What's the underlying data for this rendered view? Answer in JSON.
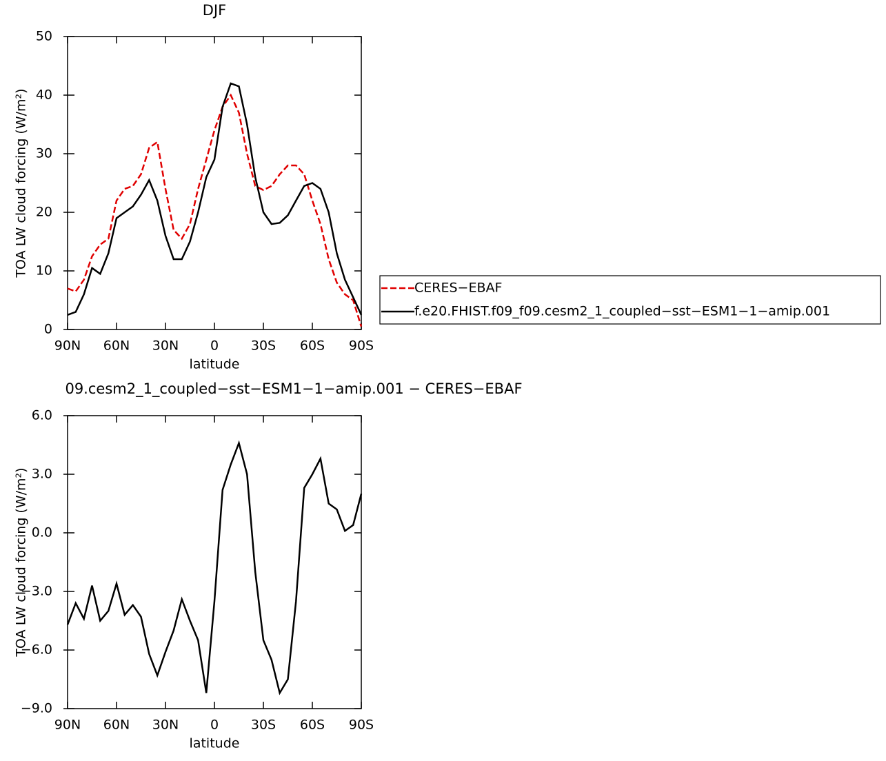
{
  "chart_data": [
    {
      "type": "line",
      "title": "DJF",
      "xlabel": "latitude",
      "ylabel": "TOA LW cloud forcing (W/m²)",
      "x": [
        90,
        85,
        80,
        75,
        70,
        65,
        60,
        55,
        50,
        45,
        40,
        35,
        30,
        25,
        20,
        15,
        10,
        5,
        0,
        -5,
        -10,
        -15,
        -20,
        -25,
        -30,
        -35,
        -40,
        -45,
        -50,
        -55,
        -60,
        -65,
        -70,
        -75,
        -80,
        -85,
        -90
      ],
      "xlim": [
        90,
        -90
      ],
      "xticks": [
        {
          "value": 90,
          "label": "90N"
        },
        {
          "value": 60,
          "label": "60N"
        },
        {
          "value": 30,
          "label": "30N"
        },
        0,
        {
          "value": -30,
          "label": "30S"
        },
        {
          "value": -60,
          "label": "60S"
        },
        {
          "value": -90,
          "label": "90S"
        }
      ],
      "ylim": [
        0,
        50
      ],
      "yticks": [
        0,
        10,
        20,
        30,
        40,
        50
      ],
      "legend": "right",
      "series": [
        {
          "name": "CERES−EBAF",
          "color": "#e00000",
          "line_style": "dashed",
          "values": [
            7,
            6.5,
            8.5,
            12.5,
            14.5,
            15.5,
            22,
            24,
            24.5,
            26.5,
            31,
            32,
            24,
            17,
            15.5,
            18,
            24,
            29,
            34,
            38,
            40,
            37,
            30,
            24.5,
            23.8,
            24.5,
            26.5,
            28,
            28,
            26.5,
            22,
            18,
            12,
            8,
            6,
            5,
            0.5
          ]
        },
        {
          "name": "f.e20.FHIST.f09_f09.cesm2_1_coupled−sst−ESM1−1−amip.001",
          "color": "#000000",
          "line_style": "solid",
          "values": [
            2.5,
            3,
            6,
            10.5,
            9.5,
            13,
            19,
            20,
            21,
            23,
            25.5,
            22,
            16,
            12,
            12,
            15,
            20,
            26,
            29,
            38,
            42,
            41.5,
            35,
            26,
            20,
            18,
            18.2,
            19.5,
            22,
            24.5,
            25,
            24,
            20,
            13,
            8.5,
            5.5,
            2.5
          ]
        }
      ]
    },
    {
      "type": "line",
      "title": "09.cesm2_1_coupled−sst−ESM1−1−amip.001 − CERES−EBAF",
      "xlabel": "latitude",
      "ylabel": "TOA LW cloud forcing (W/m²)",
      "x": [
        90,
        85,
        80,
        75,
        70,
        65,
        60,
        55,
        50,
        45,
        40,
        35,
        30,
        25,
        20,
        15,
        10,
        5,
        0,
        -5,
        -10,
        -15,
        -20,
        -25,
        -30,
        -35,
        -40,
        -45,
        -50,
        -55,
        -60,
        -65,
        -70,
        -75,
        -80,
        -85,
        -90
      ],
      "xlim": [
        90,
        -90
      ],
      "xticks": [
        {
          "value": 90,
          "label": "90N"
        },
        {
          "value": 60,
          "label": "60N"
        },
        {
          "value": 30,
          "label": "30N"
        },
        0,
        {
          "value": -30,
          "label": "30S"
        },
        {
          "value": -60,
          "label": "60S"
        },
        {
          "value": -90,
          "label": "90S"
        }
      ],
      "ylim": [
        -9,
        6
      ],
      "yticks": [
        {
          "value": 6,
          "label": "6.0"
        },
        {
          "value": 3,
          "label": "3.0"
        },
        {
          "value": 0,
          "label": "0.0"
        },
        {
          "value": -3,
          "label": "−3.0"
        },
        {
          "value": -6,
          "label": "−6.0"
        },
        {
          "value": -9,
          "label": "−9.0"
        }
      ],
      "series": [
        {
          "color": "#000000",
          "line_style": "solid",
          "values": [
            -4.7,
            -3.6,
            -4.4,
            -2.7,
            -4.5,
            -4.0,
            -2.6,
            -4.2,
            -3.7,
            -4.3,
            -6.2,
            -7.3,
            -6.1,
            -5.0,
            -3.4,
            -4.5,
            -5.5,
            -8.2,
            -3.5,
            2.2,
            3.5,
            4.6,
            3,
            -2,
            -5.5,
            -6.5,
            -8.2,
            -7.5,
            -3.5,
            2.3,
            3.0,
            3.8,
            1.5,
            1.2,
            0.1,
            0.4,
            2.0
          ]
        }
      ]
    }
  ]
}
